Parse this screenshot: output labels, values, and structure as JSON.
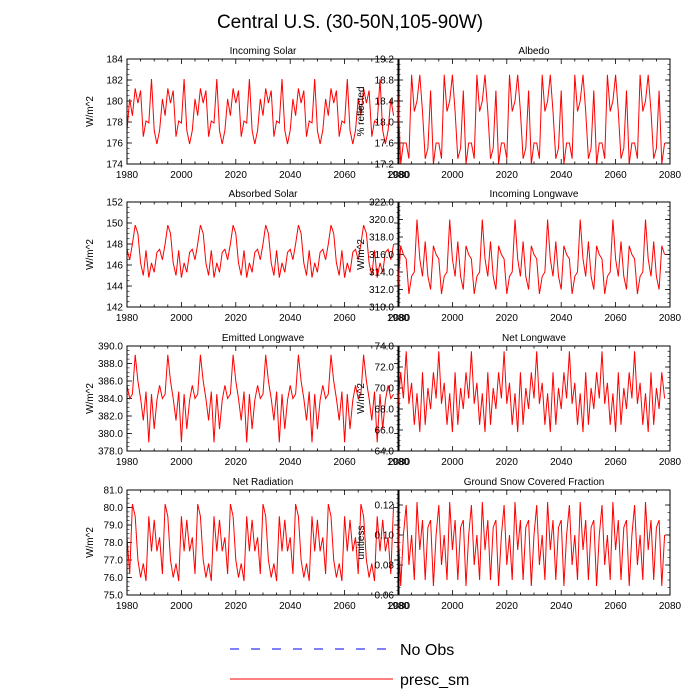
{
  "title": "Central U.S. (30-50N,105-90W)",
  "legend": {
    "entries": [
      {
        "label": "No Obs",
        "color": "#0000ff",
        "style": "dashed"
      },
      {
        "label": "presc_sm",
        "color": "#ff0000",
        "style": "solid"
      }
    ]
  },
  "chart_data": [
    {
      "type": "line",
      "title": "Incoming Solar",
      "ylabel": "W/m^2",
      "xlim": [
        1980,
        2080
      ],
      "ylim": [
        174,
        184
      ],
      "xticks": [
        1980,
        2000,
        2020,
        2040,
        2060,
        2080
      ],
      "yticks": [
        "174",
        "176",
        "178",
        "180",
        "182",
        "184"
      ],
      "series": [
        {
          "name": "presc_sm",
          "color": "#ff0000",
          "period": 12,
          "cycle": [
            177.2,
            180.2,
            178.6,
            181.2,
            179.8,
            181.0,
            176.6,
            178.1,
            177.9,
            182.1,
            177.2,
            175.9
          ]
        }
      ]
    },
    {
      "type": "line",
      "title": "Albedo",
      "ylabel": "% reflected",
      "xlim": [
        1980,
        2080
      ],
      "ylim": [
        17.2,
        19.2
      ],
      "xticks": [
        1980,
        2000,
        2020,
        2040,
        2060,
        2080
      ],
      "yticks": [
        "17.2",
        "17.6",
        "18.0",
        "18.4",
        "18.8",
        "19.2"
      ],
      "series": [
        {
          "name": "presc_sm",
          "color": "#ff0000",
          "period": 12,
          "cycle": [
            18.6,
            17.2,
            17.6,
            17.6,
            17.3,
            18.9,
            18.2,
            18.4,
            18.9,
            18.2,
            17.3,
            17.5
          ]
        }
      ]
    },
    {
      "type": "line",
      "title": "Absorbed Solar",
      "ylabel": "W/m^2",
      "xlim": [
        1980,
        2080
      ],
      "ylim": [
        142,
        152
      ],
      "xticks": [
        1980,
        2000,
        2020,
        2040,
        2060,
        2080
      ],
      "yticks": [
        "142",
        "144",
        "146",
        "148",
        "150",
        "152"
      ],
      "series": [
        {
          "name": "presc_sm",
          "color": "#ff0000",
          "period": 12,
          "cycle": [
            147.5,
            146.5,
            148.0,
            149.8,
            149.0,
            146.2,
            145.0,
            147.4,
            144.8,
            146.2,
            145.3,
            147.2
          ]
        }
      ]
    },
    {
      "type": "line",
      "title": "Incoming Longwave",
      "ylabel": "W/m^2",
      "xlim": [
        1980,
        2080
      ],
      "ylim": [
        310,
        322
      ],
      "xticks": [
        1980,
        2000,
        2020,
        2040,
        2060,
        2080
      ],
      "yticks": [
        "310.0",
        "312.0",
        "314.0",
        "316.0",
        "318.0",
        "320.0",
        "322.0"
      ],
      "series": [
        {
          "name": "presc_sm",
          "color": "#ff0000",
          "period": 12,
          "cycle": [
            312.0,
            317.0,
            316.0,
            315.5,
            311.5,
            313.5,
            314.0,
            320.0,
            315.5,
            313.5,
            317.5,
            313.5
          ]
        }
      ]
    },
    {
      "type": "line",
      "title": "Emitted Longwave",
      "ylabel": "W/m^2",
      "xlim": [
        1980,
        2080
      ],
      "ylim": [
        378,
        390
      ],
      "xticks": [
        1980,
        2000,
        2020,
        2040,
        2060,
        2080
      ],
      "yticks": [
        "378.0",
        "380.0",
        "382.0",
        "384.0",
        "386.0",
        "388.0",
        "390.0"
      ],
      "series": [
        {
          "name": "presc_sm",
          "color": "#ff0000",
          "period": 12,
          "cycle": [
            385.5,
            384.0,
            384.5,
            389.0,
            386.0,
            384.0,
            381.5,
            384.8,
            379.0,
            384.5,
            380.5,
            383.8
          ]
        }
      ]
    },
    {
      "type": "line",
      "title": "Net Longwave",
      "ylabel": "W/m^2",
      "xlim": [
        1980,
        2080
      ],
      "ylim": [
        64,
        74
      ],
      "xticks": [
        1980,
        2000,
        2020,
        2040,
        2060,
        2080
      ],
      "yticks": [
        "64.0",
        "66.0",
        "68.0",
        "70.0",
        "72.0",
        "74.0"
      ],
      "series": [
        {
          "name": "presc_sm",
          "color": "#ff0000",
          "period": 12,
          "cycle": [
            68.0,
            71.5,
            69.0,
            73.5,
            68.5,
            70.5,
            66.5,
            69.5,
            65.8,
            71.5,
            66.5,
            70.0
          ]
        }
      ]
    },
    {
      "type": "line",
      "title": "Net Radiation",
      "ylabel": "W/m^2",
      "xlim": [
        1980,
        2080
      ],
      "ylim": [
        75,
        81
      ],
      "xticks": [
        1980,
        2000,
        2020,
        2040,
        2060,
        2080
      ],
      "yticks": [
        "75.0",
        "76.0",
        "77.0",
        "78.0",
        "79.0",
        "80.0",
        "81.0"
      ],
      "series": [
        {
          "name": "presc_sm",
          "color": "#ff0000",
          "period": 12,
          "cycle": [
            78.3,
            76.2,
            80.2,
            79.5,
            77.0,
            76.0,
            76.8,
            75.8,
            79.5,
            77.5,
            79.3,
            77.5
          ]
        }
      ]
    },
    {
      "type": "line",
      "title": "Ground Snow Covered Fraction",
      "ylabel": "unitless",
      "xlim": [
        1980,
        2080
      ],
      "ylim": [
        0.06,
        0.13
      ],
      "xticks": [
        1980,
        2000,
        2020,
        2040,
        2060,
        2080
      ],
      "yticks": [
        "0.06",
        "0.08",
        "0.10",
        "0.12"
      ],
      "series": [
        {
          "name": "presc_sm",
          "color": "#ff0000",
          "period": 12,
          "cycle": [
            0.11,
            0.066,
            0.1,
            0.12,
            0.08,
            0.1,
            0.07,
            0.122,
            0.09,
            0.11,
            0.07,
            0.105
          ]
        }
      ]
    }
  ]
}
